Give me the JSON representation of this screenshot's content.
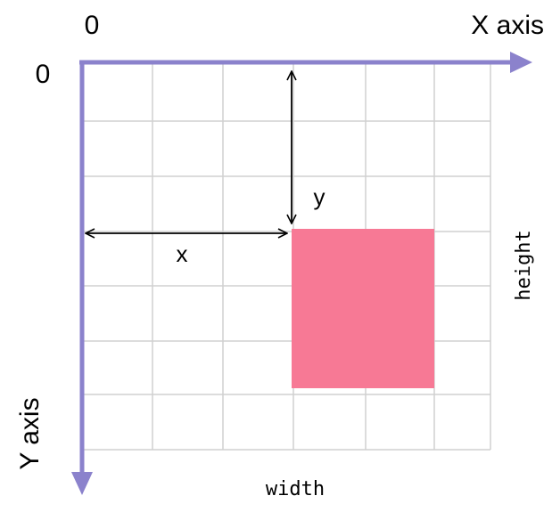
{
  "axes": {
    "x_origin": "0",
    "y_origin": "0",
    "x_axis": "X axis",
    "y_axis": "Y axis"
  },
  "rect": {
    "x": "x",
    "y": "y",
    "width": "width",
    "height": "height"
  }
}
